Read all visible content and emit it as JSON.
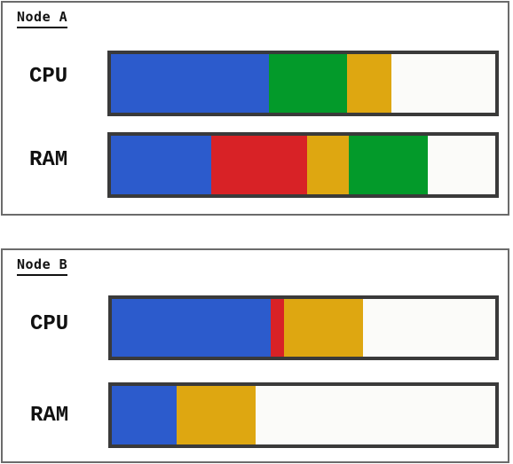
{
  "colors": {
    "blue": "#2c5bcc",
    "green": "#039a2a",
    "amber": "#dea711",
    "red": "#d82226",
    "empty": "#fbfbf9"
  },
  "nodes": [
    {
      "title": "Node A",
      "rows": [
        {
          "label": "CPU",
          "segments": [
            {
              "color": "blue",
              "fraction": 0.41
            },
            {
              "color": "green",
              "fraction": 0.205
            },
            {
              "color": "amber",
              "fraction": 0.115
            }
          ]
        },
        {
          "label": "RAM",
          "segments": [
            {
              "color": "blue",
              "fraction": 0.26
            },
            {
              "color": "red",
              "fraction": 0.25
            },
            {
              "color": "amber",
              "fraction": 0.11
            },
            {
              "color": "green",
              "fraction": 0.205
            }
          ]
        }
      ]
    },
    {
      "title": "Node B",
      "rows": [
        {
          "label": "CPU",
          "segments": [
            {
              "color": "blue",
              "fraction": 0.415
            },
            {
              "color": "red",
              "fraction": 0.035
            },
            {
              "color": "amber",
              "fraction": 0.205
            }
          ]
        },
        {
          "label": "RAM",
          "segments": [
            {
              "color": "blue",
              "fraction": 0.17
            },
            {
              "color": "amber",
              "fraction": 0.205
            }
          ]
        }
      ]
    }
  ]
}
